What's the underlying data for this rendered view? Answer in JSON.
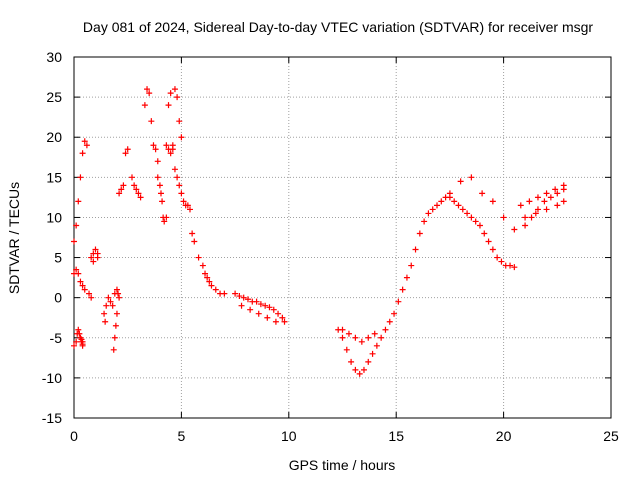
{
  "chart_data": {
    "type": "scatter",
    "title": "Day 081 of 2024, Sidereal Day-to-day VTEC variation (SDTVAR) for receiver msgr",
    "xlabel": "GPS time / hours",
    "ylabel": "SDTVAR / TECUs",
    "xlim": [
      0,
      25
    ],
    "ylim": [
      -15,
      30
    ],
    "xticks": [
      "0",
      "5",
      "10",
      "15",
      "20",
      "25"
    ],
    "yticks": [
      "30",
      "25",
      "20",
      "15",
      "10",
      "5",
      "0",
      "-5",
      "-10",
      "-15"
    ],
    "grid": true,
    "marker": "+",
    "series": [
      {
        "name": "SDTVAR",
        "color": "#ff0000",
        "x": [
          0.0,
          0.1,
          0.2,
          0.3,
          0.4,
          0.5,
          0.6,
          0.0,
          0.1,
          0.2,
          0.3,
          0.4,
          0.5,
          0.0,
          0.1,
          0.15,
          0.2,
          0.25,
          0.3,
          0.35,
          0.35,
          0.4,
          0.4,
          0.4,
          0.7,
          0.8,
          0.9,
          0.8,
          0.9,
          1.0,
          1.1,
          1.1,
          1.4,
          1.45,
          1.5,
          1.6,
          1.7,
          1.8,
          1.9,
          2.0,
          2.05,
          2.1,
          2.0,
          1.9,
          1.85,
          1.95,
          2.1,
          2.2,
          2.3,
          2.4,
          2.5,
          2.7,
          2.8,
          2.9,
          3.0,
          3.1,
          3.3,
          3.4,
          3.5,
          3.6,
          3.7,
          3.8,
          3.9,
          3.9,
          4.0,
          4.05,
          4.1,
          4.15,
          4.2,
          4.3,
          4.4,
          4.5,
          4.7,
          4.8,
          4.9,
          5.0,
          4.3,
          4.4,
          4.5,
          4.6,
          4.6,
          4.7,
          4.8,
          4.9,
          5.0,
          5.1,
          5.2,
          5.3,
          5.4,
          5.5,
          5.6,
          5.8,
          6.0,
          6.1,
          6.2,
          6.3,
          6.4,
          6.6,
          6.8,
          7.0,
          7.5,
          7.7,
          7.9,
          8.1,
          8.3,
          8.5,
          8.7,
          8.9,
          9.1,
          9.3,
          9.5,
          9.7,
          7.8,
          8.2,
          8.6,
          9.0,
          9.4,
          9.8,
          12.3,
          12.5,
          12.7,
          12.9,
          13.1,
          13.3,
          13.5,
          13.7,
          13.9,
          14.1,
          14.3,
          14.5,
          14.7,
          14.9,
          15.1,
          15.3,
          15.5,
          15.7,
          15.9,
          16.1,
          16.3,
          16.5,
          16.7,
          16.9,
          17.1,
          17.3,
          17.5,
          17.7,
          17.9,
          18.1,
          18.3,
          18.5,
          18.7,
          18.9,
          19.1,
          19.3,
          19.5,
          19.7,
          19.9,
          20.1,
          20.3,
          20.5,
          12.5,
          12.8,
          13.1,
          13.4,
          13.7,
          14.0,
          17.5,
          18.0,
          18.5,
          19.0,
          19.5,
          20.0,
          20.5,
          21.0,
          21.3,
          21.6,
          21.9,
          22.2,
          22.5,
          22.8,
          20.8,
          21.2,
          21.6,
          22.0,
          22.4,
          22.8,
          21.0,
          21.5,
          22.0,
          22.5,
          22.8
        ],
        "y": [
          7.0,
          9.0,
          12.0,
          15.0,
          18.0,
          19.5,
          19.0,
          3.0,
          3.5,
          3.0,
          2.0,
          1.5,
          1.0,
          -6.0,
          -5.5,
          -4.5,
          -4.0,
          -4.5,
          -5.0,
          -5.2,
          -5.5,
          -6.0,
          -5.8,
          -5.5,
          0.5,
          0.0,
          4.5,
          5.0,
          5.5,
          6.0,
          5.5,
          5.0,
          -2.0,
          -3.0,
          -1.0,
          0.0,
          -0.5,
          -1.0,
          0.5,
          1.0,
          0.5,
          0.0,
          -2.0,
          -5.0,
          -6.5,
          -3.5,
          13.0,
          13.5,
          14.0,
          18.0,
          18.5,
          15.0,
          14.0,
          13.5,
          13.0,
          12.5,
          24.0,
          26.0,
          25.5,
          22.0,
          19.0,
          18.5,
          17.0,
          15.0,
          14.0,
          13.0,
          12.0,
          10.0,
          9.5,
          10.0,
          24.0,
          25.5,
          26.0,
          25.0,
          22.0,
          20.0,
          19.0,
          18.5,
          18.0,
          18.5,
          19.0,
          16.0,
          15.0,
          14.0,
          13.0,
          12.0,
          11.5,
          11.5,
          11.0,
          8.0,
          7.0,
          5.0,
          4.0,
          3.0,
          2.5,
          2.0,
          1.5,
          1.0,
          0.5,
          0.5,
          0.5,
          0.2,
          0.0,
          -0.2,
          -0.5,
          -0.5,
          -0.8,
          -1.0,
          -1.2,
          -1.5,
          -2.0,
          -2.5,
          -1.0,
          -1.5,
          -2.0,
          -2.5,
          -3.0,
          -3.0,
          -4.0,
          -5.0,
          -6.5,
          -8.0,
          -9.0,
          -9.5,
          -9.0,
          -8.0,
          -7.0,
          -6.0,
          -5.0,
          -4.0,
          -3.0,
          -2.0,
          -0.5,
          1.0,
          2.5,
          4.0,
          6.0,
          8.0,
          9.5,
          10.5,
          11.0,
          11.5,
          12.0,
          12.5,
          12.5,
          12.0,
          11.5,
          11.0,
          10.5,
          10.0,
          9.5,
          9.0,
          8.0,
          7.0,
          6.0,
          5.0,
          4.5,
          4.0,
          4.0,
          3.8,
          -4.0,
          -4.5,
          -5.0,
          -5.5,
          -5.0,
          -4.5,
          13.0,
          14.5,
          15.0,
          13.0,
          12.0,
          10.0,
          8.5,
          9.0,
          10.0,
          11.0,
          12.0,
          12.5,
          13.0,
          13.5,
          11.5,
          12.0,
          12.5,
          13.0,
          13.5,
          14.0,
          10.0,
          10.5,
          11.0,
          11.5,
          12.0
        ]
      }
    ]
  }
}
